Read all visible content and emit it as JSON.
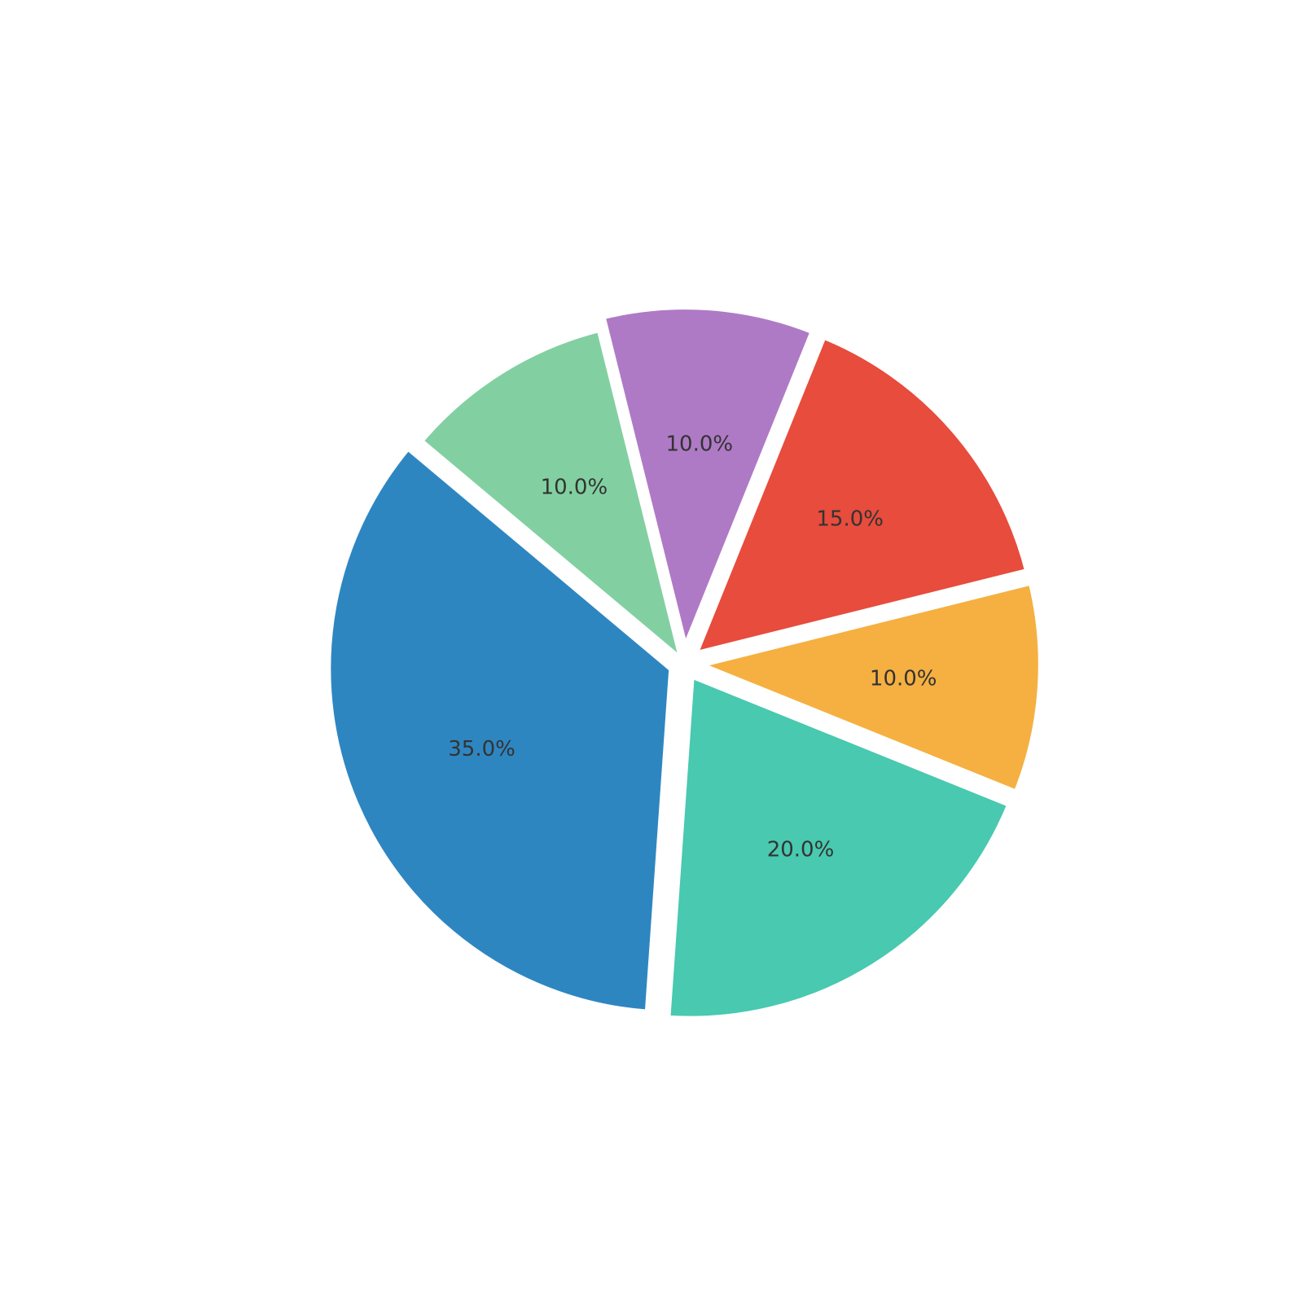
{
  "chart_data": {
    "type": "pie",
    "title": "",
    "legend": "none",
    "start_angle_deg": 140,
    "direction": "counterclockwise",
    "slices": [
      {
        "value": 35.0,
        "label": "35.0%",
        "color": "#2e86c1",
        "explode": true
      },
      {
        "value": 20.0,
        "label": "20.0%",
        "color": "#48c9b0",
        "explode": true
      },
      {
        "value": 10.0,
        "label": "10.0%",
        "color": "#f5b041",
        "explode": true
      },
      {
        "value": 15.0,
        "label": "15.0%",
        "color": "#e74c3c",
        "explode": true
      },
      {
        "value": 10.0,
        "label": "10.0%",
        "color": "#af7ac5",
        "explode": true
      },
      {
        "value": 10.0,
        "label": "10.0%",
        "color": "#82d0a1",
        "explode": false
      }
    ]
  }
}
